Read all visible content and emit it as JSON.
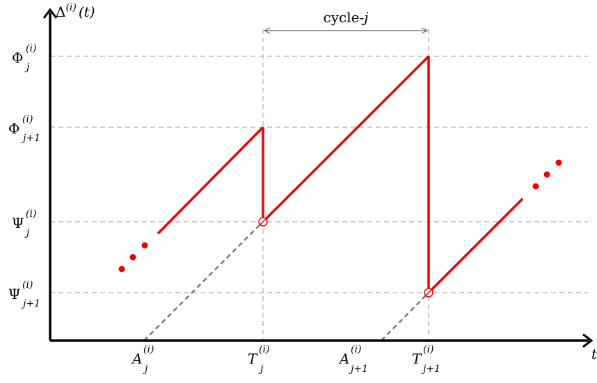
{
  "diagram": {
    "y_axis_label": {
      "base": "Δ",
      "sup": "(i)",
      "tail": "(t)"
    },
    "x_axis_label": "t",
    "cycle_label": {
      "text": "cycle-",
      "var": "j"
    },
    "y_levels": [
      {
        "key": "phi_j",
        "base": "Φ",
        "sub": "j",
        "sup": "(i)"
      },
      {
        "key": "phi_j1",
        "base": "Φ",
        "sub": "j+1",
        "sup": "(i)"
      },
      {
        "key": "psi_j",
        "base": "Ψ",
        "sub": "j",
        "sup": "(i)"
      },
      {
        "key": "psi_j1",
        "base": "Ψ",
        "sub": "j+1",
        "sup": "(i)"
      }
    ],
    "x_marks": [
      {
        "key": "A_j",
        "base": "A",
        "sub": "j",
        "sup": "(i)"
      },
      {
        "key": "T_j",
        "base": "T",
        "sub": "j",
        "sup": "(i)"
      },
      {
        "key": "A_j1",
        "base": "A",
        "sub": "j+1",
        "sup": "(i)"
      },
      {
        "key": "T_j1",
        "base": "T",
        "sub": "j+1",
        "sup": "(i)"
      }
    ],
    "colors": {
      "curve": "#ee0000",
      "axis": "#000000",
      "guide": "#888888",
      "bracket": "#777777"
    }
  }
}
